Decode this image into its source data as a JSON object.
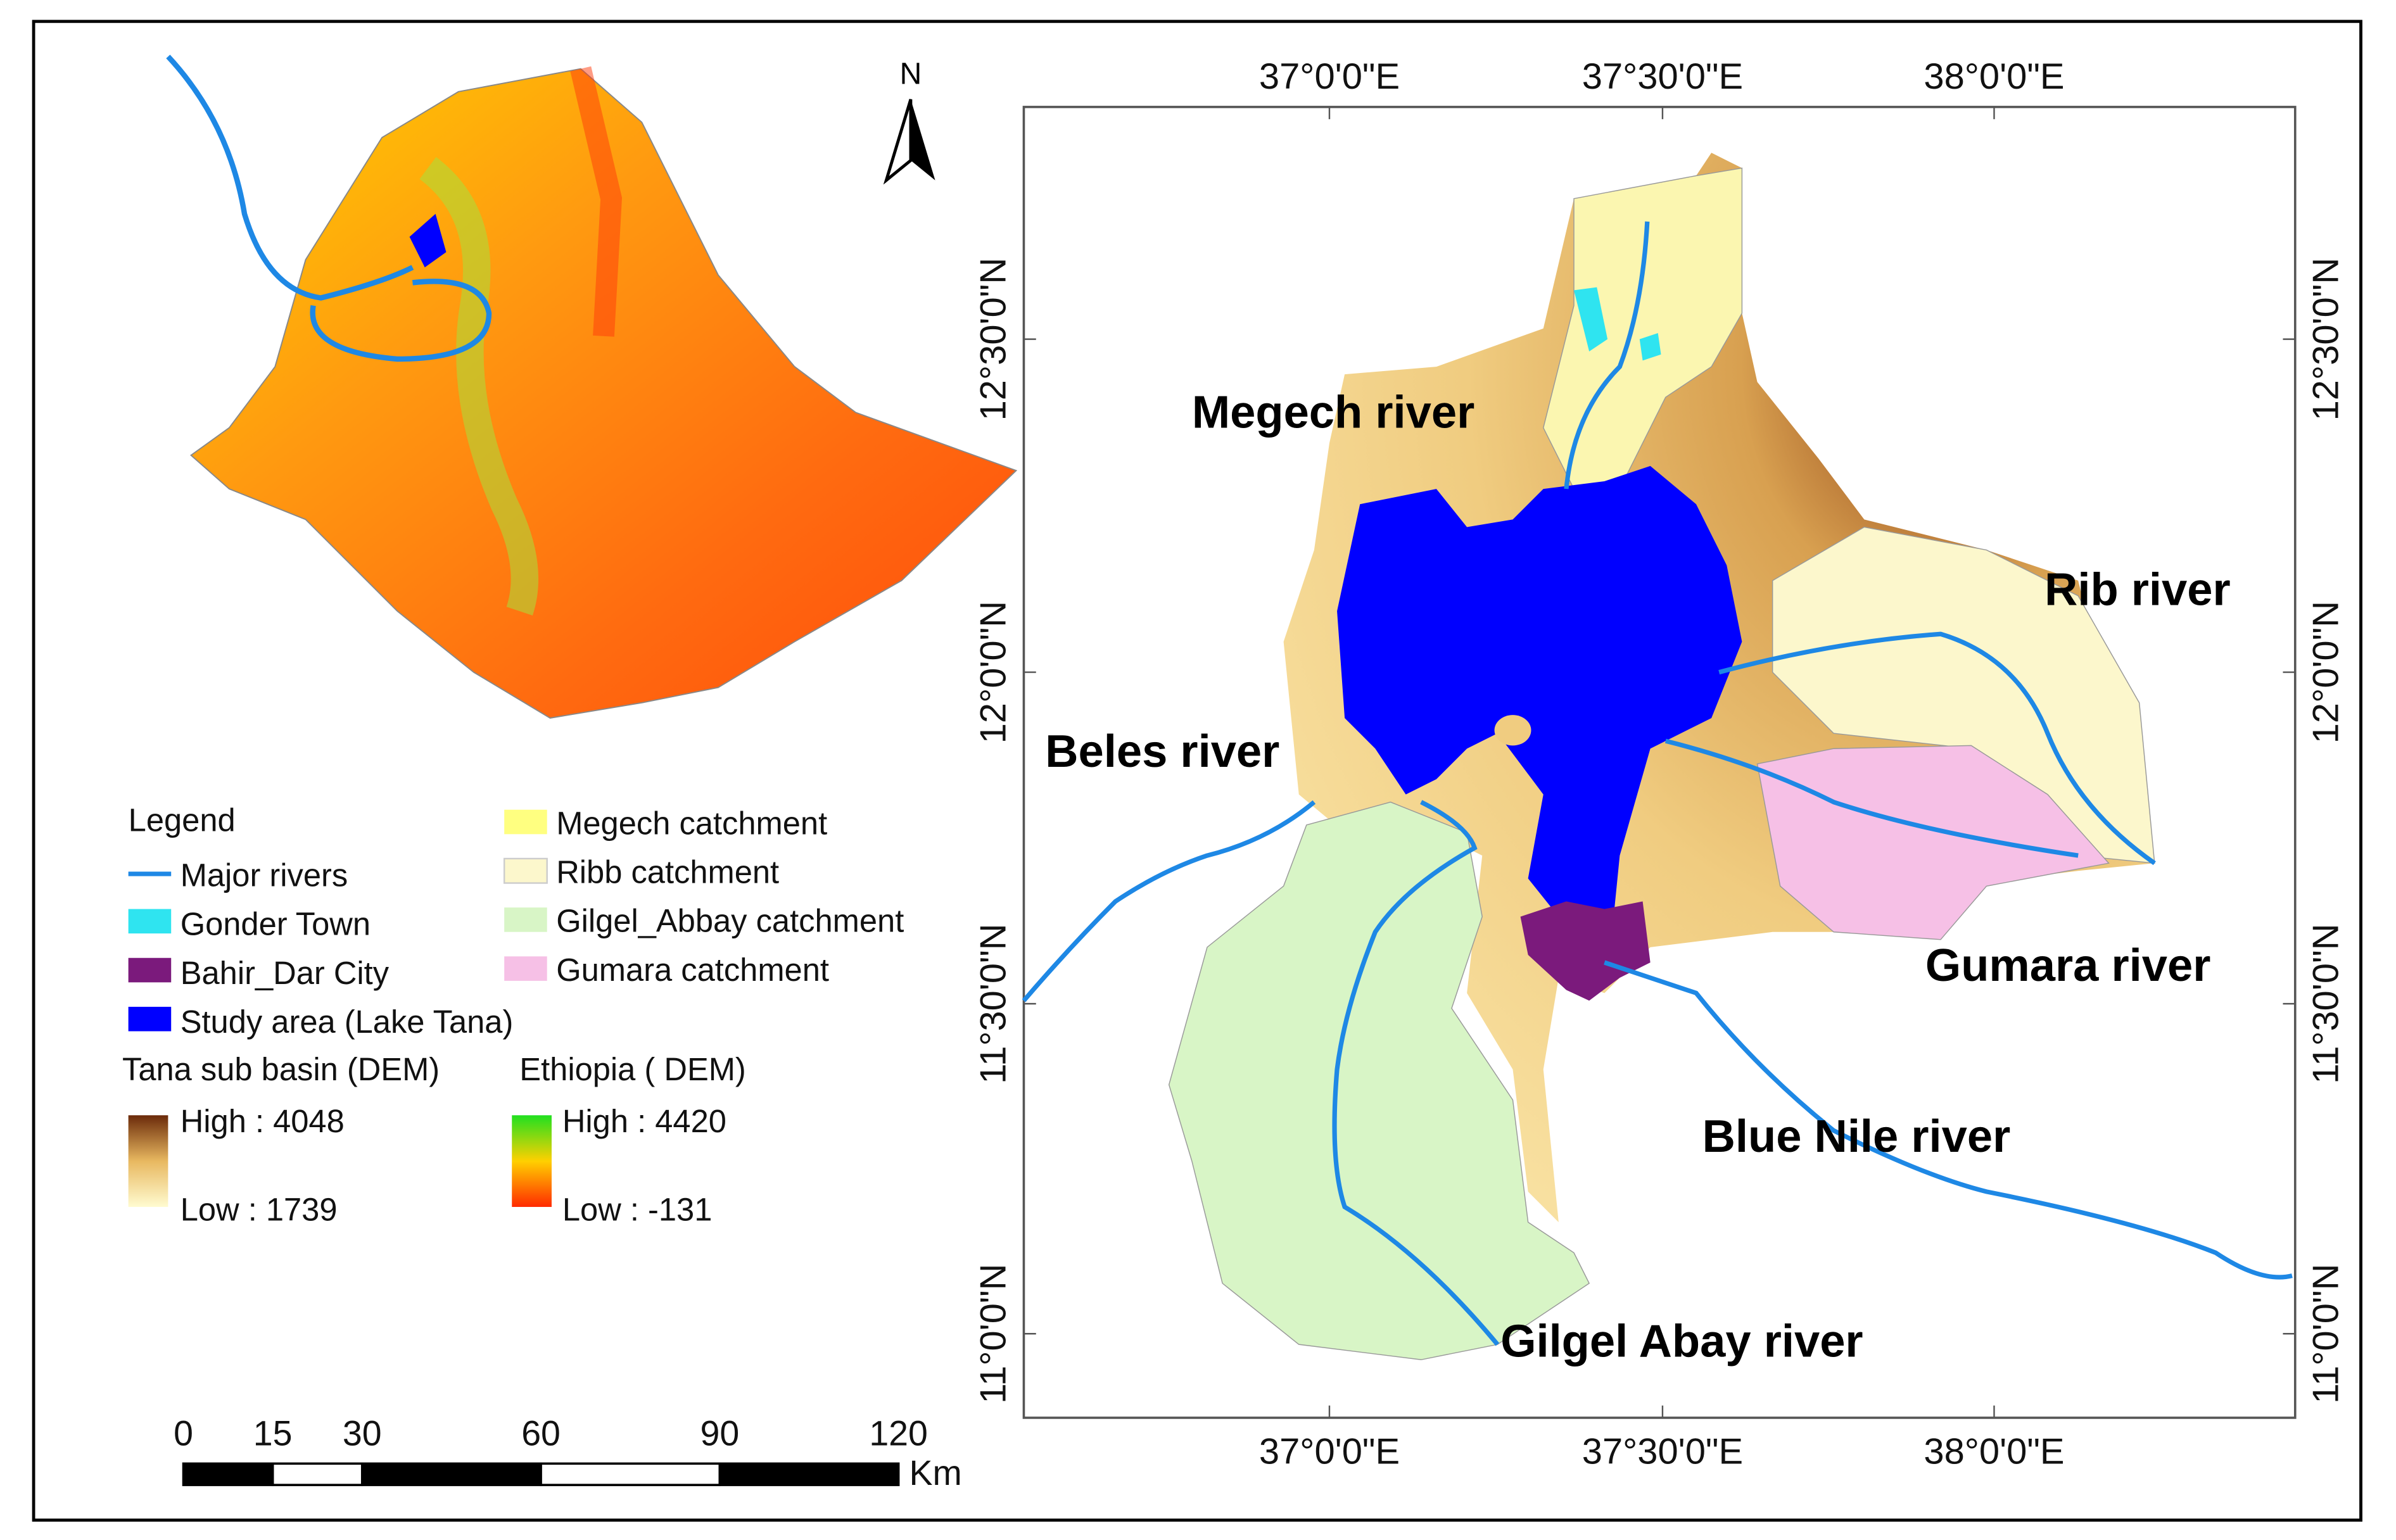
{
  "north_arrow": "N",
  "longitude_labels": [
    "37°0'0\"E",
    "37°30'0\"E",
    "38°0'0\"E"
  ],
  "latitude_labels": [
    "12°30'0\"N",
    "12°0'0\"N",
    "11°30'0\"N",
    "11°0'0\"N"
  ],
  "river_labels": [
    "Megech river",
    "Rib river",
    "Beles river",
    "Gumara river",
    "Blue Nile river",
    "Gilgel Abay river"
  ],
  "legend": {
    "title": "Legend",
    "items": [
      "Major rivers",
      "Gonder Town",
      "Bahir_Dar City",
      "Study area (Lake Tana)",
      "Megech catchment",
      "Ribb catchment",
      "Gilgel_Abbay catchment",
      "Gumara catchment"
    ],
    "dem": [
      {
        "title": "Tana sub basin (DEM)",
        "high": "High : 4048",
        "low": "Low : 1739"
      },
      {
        "title": "Ethiopia ( DEM)",
        "high": "High : 4420",
        "low": "Low : -131"
      }
    ]
  },
  "scale_bar": {
    "ticks": [
      0,
      15,
      30,
      60,
      90,
      120
    ],
    "unit": "Km"
  }
}
